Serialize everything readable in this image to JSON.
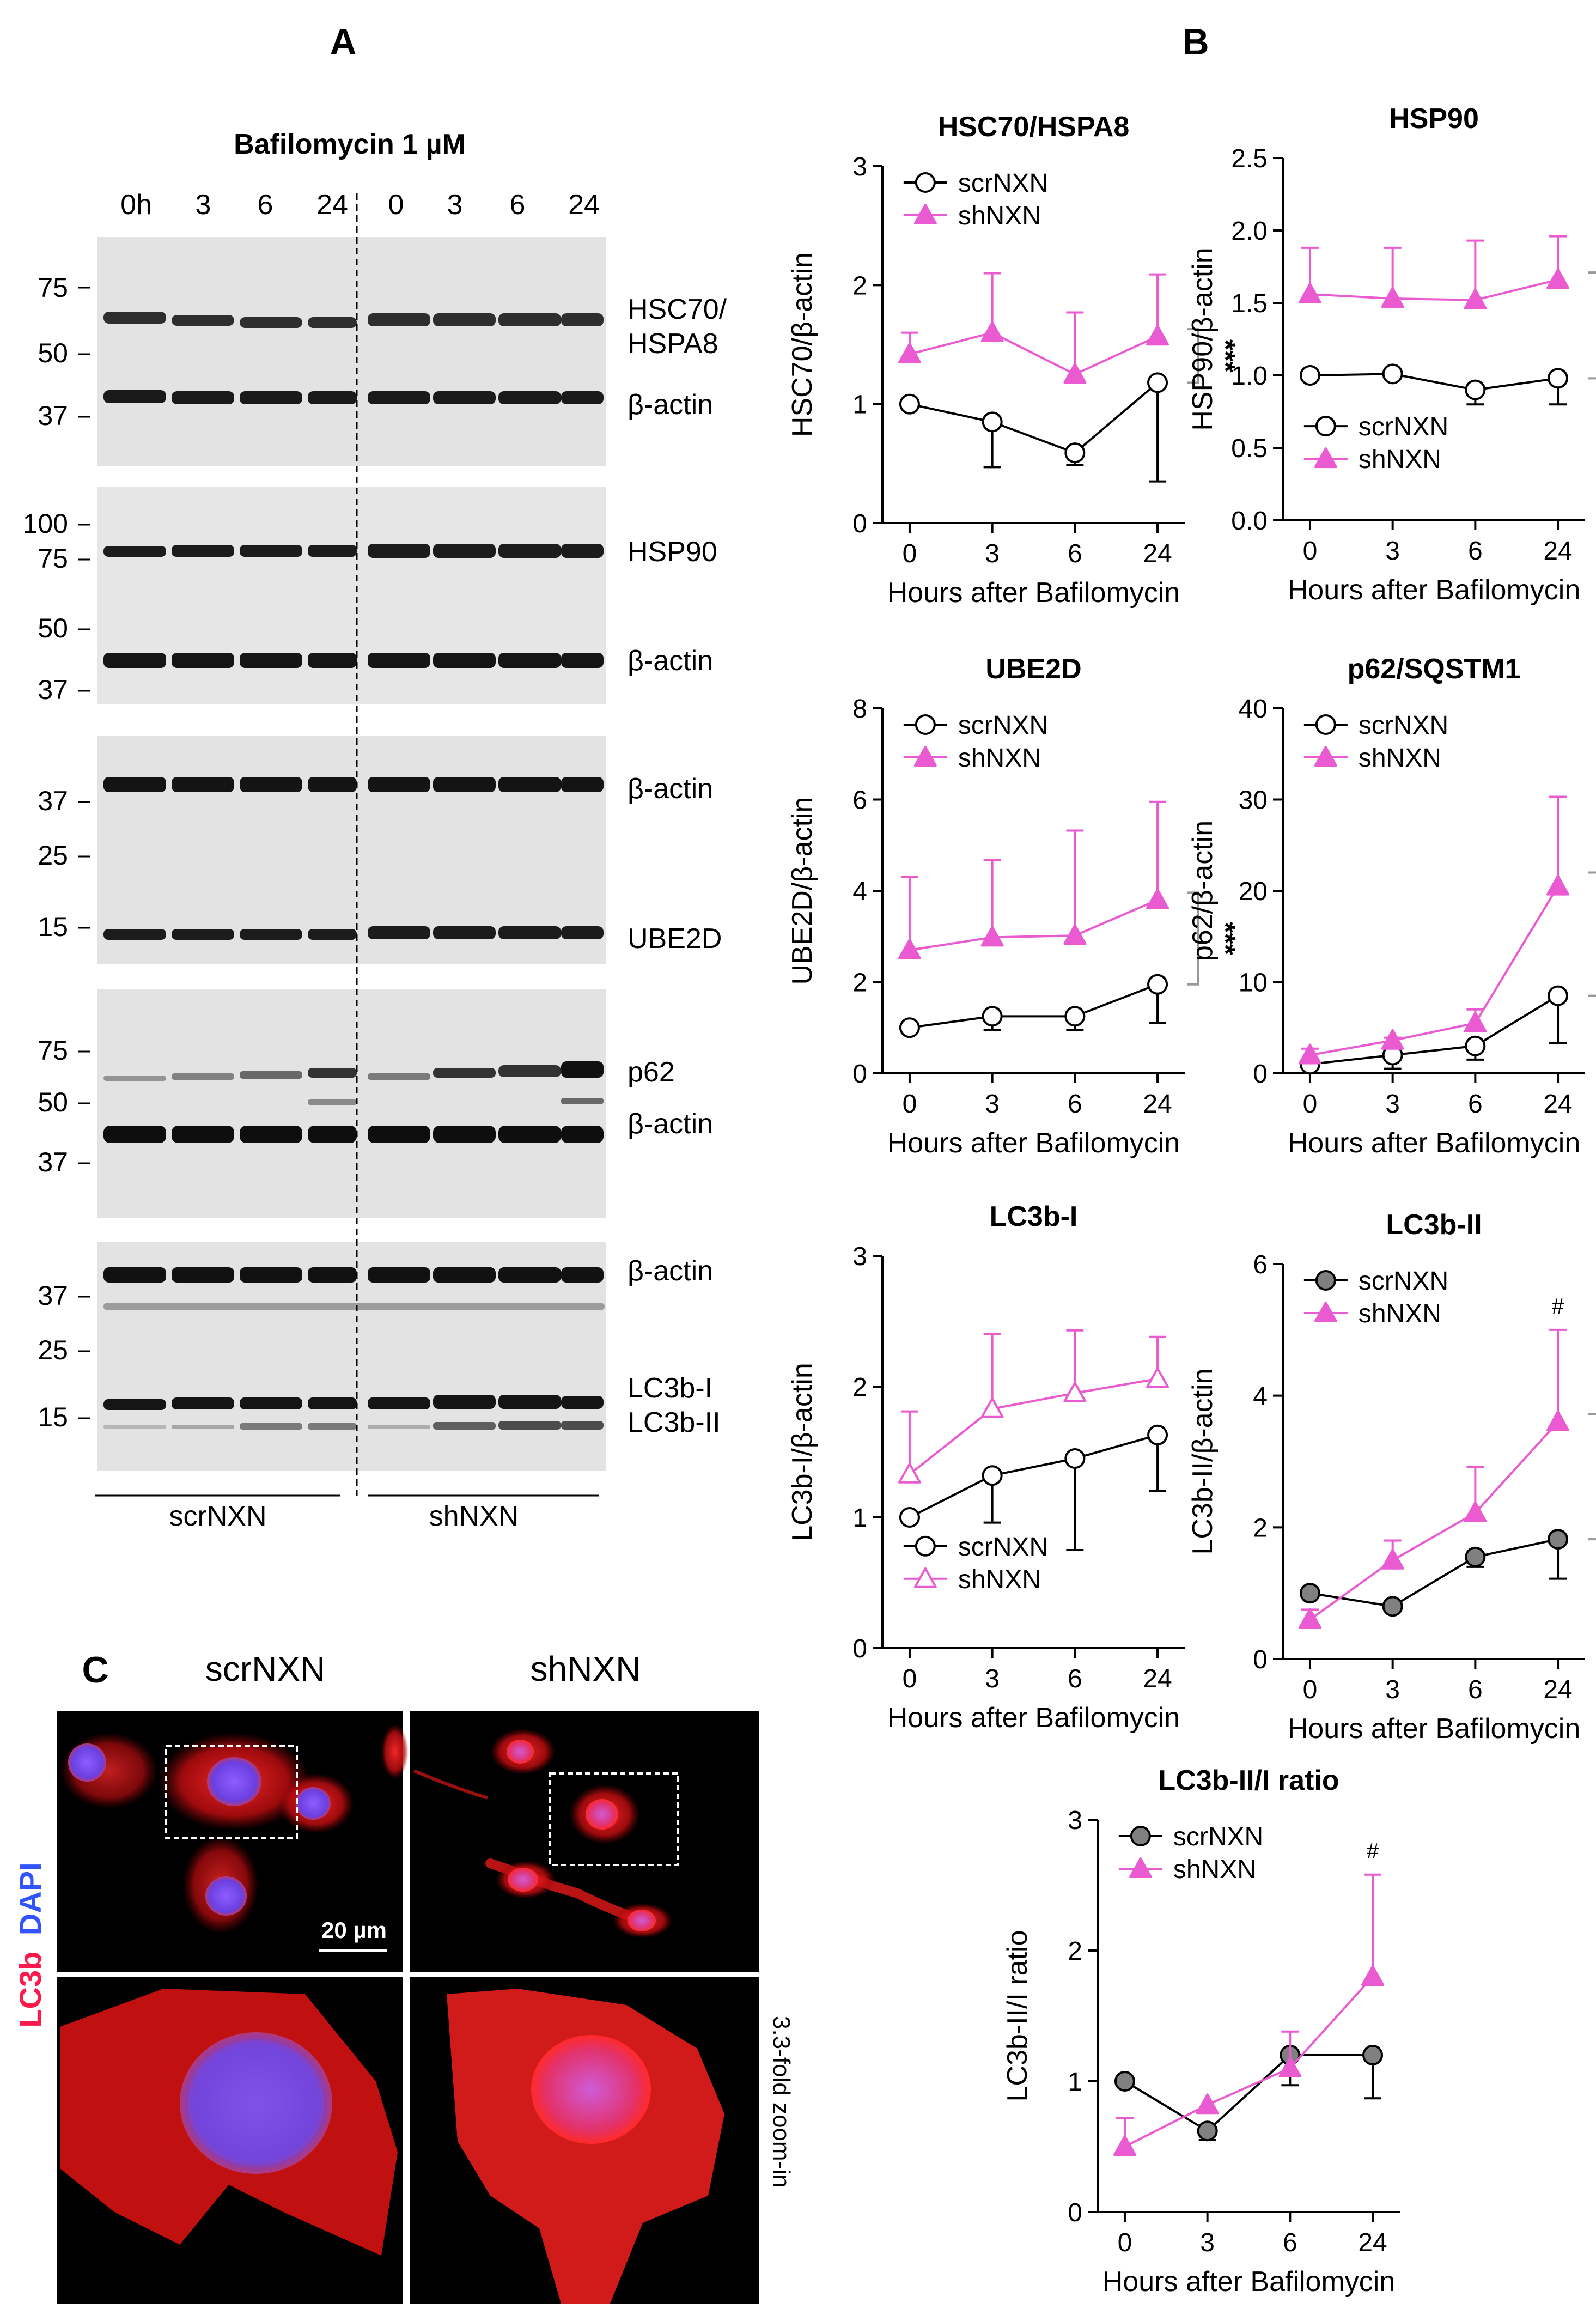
{
  "panel_labels": {
    "a": "A",
    "b": "B",
    "c": "C"
  },
  "blot": {
    "treatment": "Bafilomycin 1 µM",
    "lanes": [
      "0h",
      "3",
      "6",
      "24",
      "0",
      "3",
      "6",
      "24"
    ],
    "groups": [
      "scrNXN",
      "shNXN"
    ],
    "panels": [
      {
        "markers": [
          "75",
          "50",
          "37"
        ],
        "bands": [
          "HSC70/",
          "HSPA8",
          "β-actin"
        ]
      },
      {
        "markers": [
          "100",
          "75",
          "50",
          "37"
        ],
        "bands": [
          "HSP90",
          "β-actin"
        ]
      },
      {
        "markers": [
          "37",
          "25",
          "15"
        ],
        "bands": [
          "β-actin",
          "UBE2D"
        ]
      },
      {
        "markers": [
          "75",
          "50",
          "37"
        ],
        "bands": [
          "p62",
          "β-actin"
        ]
      },
      {
        "markers": [
          "37",
          "25",
          "15"
        ],
        "bands": [
          "β-actin",
          "LC3b-I",
          "LC3b-II"
        ]
      }
    ]
  },
  "microscopy": {
    "cols": [
      "scrNXN",
      "shNXN"
    ],
    "stain_lc3b": "LC3b",
    "stain_dapi": "DAPI",
    "scale_bar": "20 µm",
    "zoom": "3.3-fold zoom-in"
  },
  "chart_data": [
    {
      "type": "line",
      "title": "HSC70/HSPA8",
      "xlabel": "Hours after Bafilomycin",
      "ylabel": "HSC70/β-actin",
      "categories": [
        "0",
        "3",
        "6",
        "24"
      ],
      "ylim": [
        0,
        3
      ],
      "yticks": [
        "0",
        "1",
        "2",
        "3"
      ],
      "sig": "***",
      "legend": "top",
      "series": [
        {
          "name": "scrNXN",
          "values": [
            1.0,
            0.85,
            0.59,
            1.18
          ],
          "err": [
            0,
            0.38,
            0.1,
            0.83
          ],
          "marker": "circle-open",
          "color": "#000000",
          "errdir": "down"
        },
        {
          "name": "shNXN",
          "values": [
            1.42,
            1.6,
            1.25,
            1.57
          ],
          "err": [
            0.18,
            0.5,
            0.52,
            0.52
          ],
          "marker": "triangle-filled",
          "color": "#ea5bd2",
          "errdir": "up"
        }
      ]
    },
    {
      "type": "line",
      "title": "HSP90",
      "xlabel": "Hours after Bafilomycin",
      "ylabel": "HSP90/β-actin",
      "categories": [
        "0",
        "3",
        "6",
        "24"
      ],
      "ylim": [
        0,
        2.5
      ],
      "yticks": [
        "0.0",
        "0.5",
        "1.0",
        "1.5",
        "2.0",
        "2.5"
      ],
      "sig": "***",
      "legend": "bottom",
      "series": [
        {
          "name": "scrNXN",
          "values": [
            1.0,
            1.01,
            0.9,
            0.98
          ],
          "err": [
            0,
            0,
            0.1,
            0.18
          ],
          "marker": "circle-open",
          "color": "#000000",
          "errdir": "down"
        },
        {
          "name": "shNXN",
          "values": [
            1.56,
            1.53,
            1.52,
            1.66
          ],
          "err": [
            0.32,
            0.35,
            0.41,
            0.3
          ],
          "marker": "triangle-filled",
          "color": "#ea5bd2",
          "errdir": "up"
        }
      ]
    },
    {
      "type": "line",
      "title": "UBE2D",
      "xlabel": "Hours after Bafilomycin",
      "ylabel": "UBE2D/β-actin",
      "categories": [
        "0",
        "3",
        "6",
        "24"
      ],
      "ylim": [
        0,
        8
      ],
      "yticks": [
        "0",
        "2",
        "4",
        "6",
        "8"
      ],
      "sig": "***",
      "legend": "top",
      "series": [
        {
          "name": "scrNXN",
          "values": [
            1.0,
            1.25,
            1.25,
            1.95
          ],
          "err": [
            0,
            0.3,
            0.3,
            0.85
          ],
          "marker": "circle-open",
          "color": "#000000",
          "errdir": "down"
        },
        {
          "name": "shNXN",
          "values": [
            2.7,
            2.98,
            3.02,
            3.8
          ],
          "err": [
            1.6,
            1.7,
            2.3,
            2.15
          ],
          "marker": "triangle-filled",
          "color": "#ea5bd2",
          "errdir": "up"
        }
      ]
    },
    {
      "type": "line",
      "title": "p62/SQSTM1",
      "xlabel": "Hours after Bafilomycin",
      "ylabel": "p62/β-actin",
      "categories": [
        "0",
        "3",
        "6",
        "24"
      ],
      "ylim": [
        0,
        40
      ],
      "yticks": [
        "0",
        "10",
        "20",
        "30",
        "40"
      ],
      "sig": "**",
      "legend": "top",
      "series": [
        {
          "name": "scrNXN",
          "values": [
            1.0,
            2.0,
            3.0,
            8.5
          ],
          "err": [
            0,
            1.5,
            1.5,
            5.2
          ],
          "marker": "circle-open",
          "color": "#000000",
          "errdir": "down"
        },
        {
          "name": "shNXN",
          "values": [
            2.0,
            3.6,
            5.5,
            20.5
          ],
          "err": [
            0.7,
            0.3,
            1.5,
            9.8
          ],
          "marker": "triangle-filled",
          "color": "#ea5bd2",
          "errdir": "up"
        }
      ]
    },
    {
      "type": "line",
      "title": "LC3b-I",
      "xlabel": "Hours after Bafilomycin",
      "ylabel": "LC3b-I/β-actin",
      "categories": [
        "0",
        "3",
        "6",
        "24"
      ],
      "ylim": [
        0,
        3
      ],
      "yticks": [
        "0",
        "1",
        "2",
        "3"
      ],
      "sig": "",
      "legend": "bottom",
      "series": [
        {
          "name": "scrNXN",
          "values": [
            1.0,
            1.32,
            1.45,
            1.63
          ],
          "err": [
            0,
            0.36,
            0.7,
            0.43
          ],
          "marker": "circle-open",
          "color": "#000000",
          "errdir": "down"
        },
        {
          "name": "shNXN",
          "values": [
            1.33,
            1.83,
            1.95,
            2.06
          ],
          "err": [
            0.48,
            0.57,
            0.48,
            0.32
          ],
          "marker": "triangle-open",
          "color": "#ea5bd2",
          "errdir": "up"
        }
      ]
    },
    {
      "type": "line",
      "title": "LC3b-II",
      "xlabel": "Hours after Bafilomycin",
      "ylabel": "LC3b-II/β-actin",
      "categories": [
        "0",
        "3",
        "6",
        "24"
      ],
      "ylim": [
        0,
        6
      ],
      "yticks": [
        "0",
        "2",
        "4",
        "6"
      ],
      "sig": "*",
      "hash": "#",
      "legend": "top",
      "series": [
        {
          "name": "scrNXN",
          "values": [
            1.0,
            0.8,
            1.55,
            1.82
          ],
          "err": [
            0,
            0,
            0.15,
            0.6
          ],
          "marker": "circle-filled",
          "color": "#000000",
          "errdir": "down"
        },
        {
          "name": "shNXN",
          "values": [
            0.6,
            1.5,
            2.22,
            3.6
          ],
          "err": [
            0.15,
            0.3,
            0.7,
            1.4
          ],
          "marker": "triangle-filled",
          "color": "#ea5bd2",
          "errdir": "up"
        }
      ]
    },
    {
      "type": "line",
      "title": "LC3b-II/I ratio",
      "xlabel": "Hours after Bafilomycin",
      "ylabel": "LC3b-II/I ratio",
      "categories": [
        "0",
        "3",
        "6",
        "24"
      ],
      "ylim": [
        0,
        3
      ],
      "yticks": [
        "0",
        "1",
        "2",
        "3"
      ],
      "sig": "",
      "hash": "#",
      "legend": "top",
      "series": [
        {
          "name": "scrNXN",
          "values": [
            1.0,
            0.62,
            1.2,
            1.2
          ],
          "err": [
            0,
            0.07,
            0.23,
            0.33
          ],
          "marker": "circle-filled",
          "color": "#000000",
          "errdir": "down"
        },
        {
          "name": "shNXN",
          "values": [
            0.5,
            0.82,
            1.1,
            1.8
          ],
          "err": [
            0.22,
            0,
            0.28,
            0.78
          ],
          "marker": "triangle-filled",
          "color": "#ea5bd2",
          "errdir": "up"
        }
      ]
    }
  ]
}
